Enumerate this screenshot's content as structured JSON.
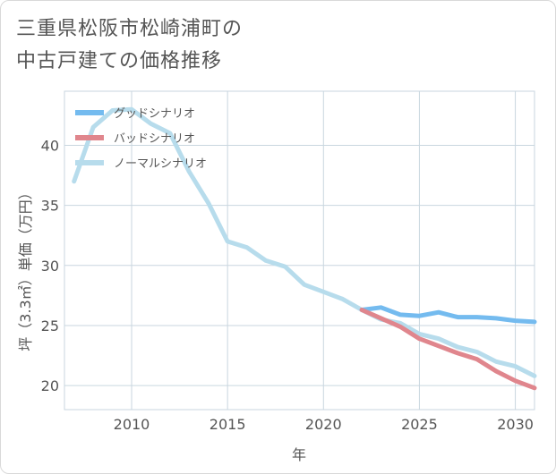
{
  "title_lines": [
    "三重県松阪市松崎浦町の",
    "中古戸建ての価格推移"
  ],
  "chart_data": {
    "type": "line",
    "xlabel": "年",
    "ylabel": "坪（3.3㎡）単価（万円）",
    "xlim": [
      2006.5,
      2031
    ],
    "ylim": [
      18,
      44.5
    ],
    "xticks": [
      2010,
      2015,
      2020,
      2025,
      2030
    ],
    "yticks": [
      20,
      25,
      30,
      35,
      40
    ],
    "grid": true,
    "legend_position": "top-left",
    "series": [
      {
        "name": "グッドシナリオ",
        "color": "#74bbef",
        "x": [
          2022,
          2023,
          2024,
          2025,
          2026,
          2027,
          2028,
          2029,
          2030,
          2031
        ],
        "y": [
          26.3,
          26.5,
          25.9,
          25.8,
          26.1,
          25.7,
          25.7,
          25.6,
          25.4,
          25.3
        ]
      },
      {
        "name": "バッドシナリオ",
        "color": "#e0868d",
        "x": [
          2022,
          2023,
          2024,
          2025,
          2026,
          2027,
          2028,
          2029,
          2030,
          2031
        ],
        "y": [
          26.3,
          25.6,
          24.9,
          23.9,
          23.3,
          22.7,
          22.2,
          21.2,
          20.4,
          19.8
        ]
      },
      {
        "name": "ノーマルシナリオ",
        "color": "#b7dcec",
        "x": [
          2007,
          2008,
          2009,
          2010,
          2011,
          2012,
          2013,
          2014,
          2015,
          2016,
          2017,
          2018,
          2019,
          2020,
          2021,
          2022,
          2023,
          2024,
          2025,
          2026,
          2027,
          2028,
          2029,
          2030,
          2031
        ],
        "y": [
          37.0,
          41.5,
          42.9,
          43.0,
          41.8,
          41.0,
          37.8,
          35.2,
          32.0,
          31.5,
          30.4,
          29.9,
          28.4,
          27.8,
          27.2,
          26.3,
          25.5,
          25.2,
          24.3,
          23.9,
          23.2,
          22.8,
          22.0,
          21.6,
          20.8
        ]
      }
    ]
  }
}
